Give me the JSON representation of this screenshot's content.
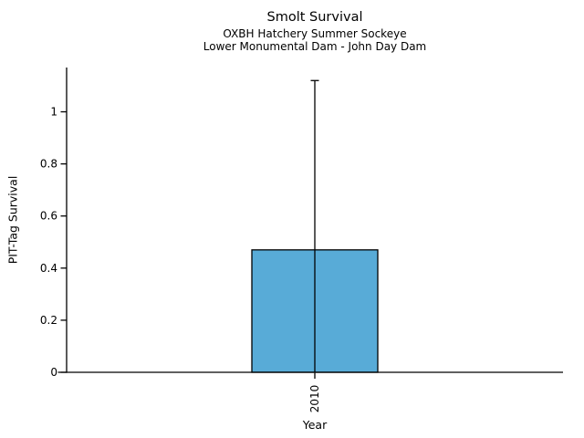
{
  "figure": {
    "background": "#ffffff"
  },
  "chart_data": {
    "type": "bar",
    "title": "Smolt Survival",
    "subtitle": [
      "OXBH Hatchery Summer Sockeye",
      "Lower Monumental Dam - John Day Dam"
    ],
    "xlabel": "Year",
    "ylabel": "PIT-Tag Survival",
    "categories": [
      "2010"
    ],
    "values": [
      0.47
    ],
    "error_high": [
      1.12
    ],
    "error_low": [
      0
    ],
    "yticks": [
      0,
      0.2,
      0.4,
      0.6,
      0.8,
      1
    ],
    "ylim": [
      0,
      1.17
    ],
    "xtick_rotation": 90,
    "grid": false,
    "legend": false,
    "bar_color": "#58ABD7",
    "bar_edge_color": "#000000",
    "axis_color": "#000000"
  }
}
